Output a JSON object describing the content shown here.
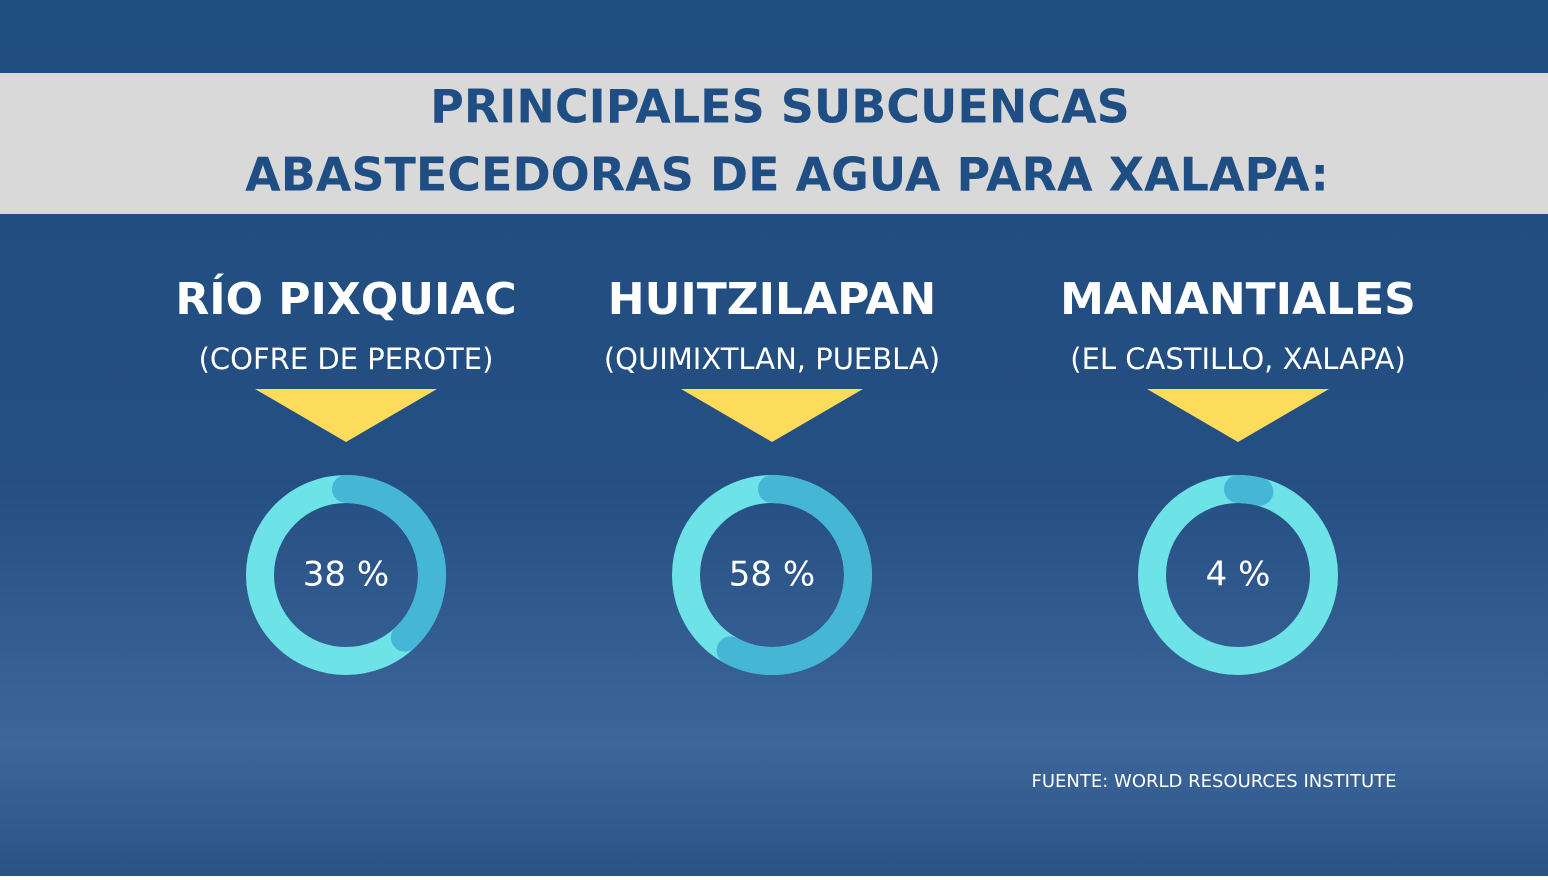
{
  "header": {
    "title_lines": [
      "PRINCIPALES SUBCUENCAS",
      "ABASTECEDORAS DE AGUA PARA XALAPA:"
    ]
  },
  "chart_data": [
    {
      "type": "donut",
      "title": "RÍO PIXQUIAC",
      "subtitle": "(COFRE DE PEROTE)",
      "values": [
        38
      ],
      "value_labels": [
        "38 %"
      ],
      "color": "#45b6d6",
      "track_color": "#6de3e8"
    },
    {
      "type": "donut",
      "title": "HUITZILAPAN",
      "subtitle": "(QUIMIXTLAN, PUEBLA)",
      "values": [
        58
      ],
      "value_labels": [
        "58 %"
      ],
      "color": "#45b6d6",
      "track_color": "#6de3e8"
    },
    {
      "type": "donut",
      "title": "MANANTIALES",
      "subtitle": "(EL CASTILLO, XALAPA)",
      "values": [
        4
      ],
      "value_labels": [
        "4 %"
      ],
      "color": "#45b6d6",
      "track_color": "#6de3e8"
    }
  ],
  "source": "FUENTE: WORLD RESOURCES INSTITUTE"
}
